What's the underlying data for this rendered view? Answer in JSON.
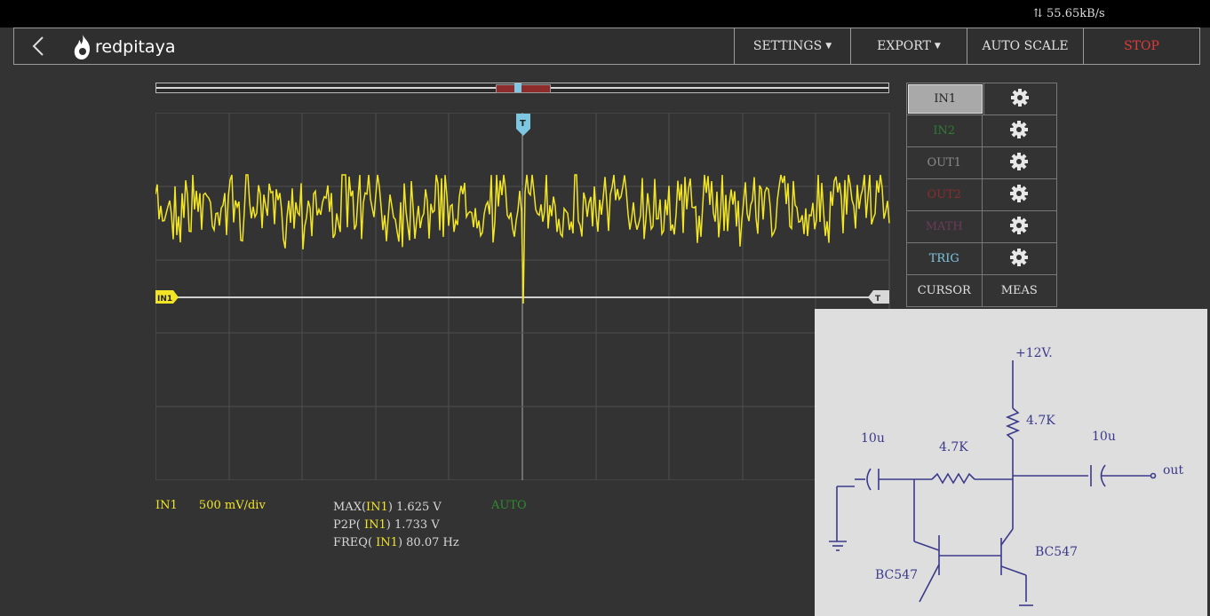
{
  "statusbar": {
    "rate": "55.65kB/s"
  },
  "header": {
    "logo_text": "redpitaya",
    "nav": {
      "settings": "SETTINGS",
      "export": "EXPORT",
      "autoscale": "AUTO SCALE",
      "stop": "STOP"
    }
  },
  "scope": {
    "trigger_marker": "T",
    "in1_marker": "IN1",
    "level_marker": "T",
    "signal_color": "#f2e526",
    "trigger_color": "#7dc7e3"
  },
  "channels": [
    {
      "label": "IN1",
      "color": "#222222"
    },
    {
      "label": "IN2",
      "color": "#2e7d32"
    },
    {
      "label": "OUT1",
      "color": "#8a8a8a"
    },
    {
      "label": "OUT2",
      "color": "#8e2c2c"
    },
    {
      "label": "MATH",
      "color": "#6b3a5a"
    },
    {
      "label": "TRIG",
      "color": "#7dc7e3"
    }
  ],
  "bottom_buttons": {
    "cursor": "CURSOR",
    "meas": "MEAS"
  },
  "info": {
    "channel": "IN1",
    "scale": "500  mV/div",
    "trigger_mode": "AUTO",
    "meas": [
      {
        "prefix": "MAX(",
        "ch": "IN1",
        "suffix": ") 1.625  V"
      },
      {
        "prefix": "P2P( ",
        "ch": "IN1",
        "suffix": ") 1.733  V"
      },
      {
        "prefix": "FREQ( ",
        "ch": "IN1",
        "suffix": ") 80.07  Hz"
      }
    ]
  },
  "schematic": {
    "labels": {
      "vcc": "+12V.",
      "r1": "4.7K",
      "r2": "4.7K",
      "c1": "10u",
      "c2": "10u",
      "out": "out",
      "q1": "BC547",
      "q2": "BC547"
    }
  }
}
